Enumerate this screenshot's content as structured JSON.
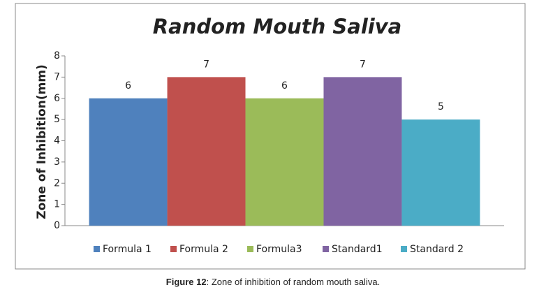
{
  "chart_data": {
    "type": "bar",
    "title": "Random Mouth Saliva",
    "y_label": "Zone of Inhibition(mm)",
    "categories": [
      null
    ],
    "series": [
      {
        "name": "Formula 1",
        "color": "#4f81bd",
        "values": [
          6
        ]
      },
      {
        "name": "Formula 2",
        "color": "#c0504d",
        "values": [
          7
        ]
      },
      {
        "name": "Formula3",
        "color": "#9bbb59",
        "values": [
          6
        ]
      },
      {
        "name": "Standard1",
        "color": "#8064a2",
        "values": [
          7
        ]
      },
      {
        "name": "Standard 2",
        "color": "#4bacc6",
        "values": [
          5
        ]
      }
    ],
    "ylim": [
      0,
      8
    ],
    "yticks": [
      0,
      1,
      2,
      3,
      4,
      5,
      6,
      7,
      8
    ],
    "grid": false,
    "legend": "bottom"
  },
  "caption": {
    "label": "Figure 12",
    "text": ": Zone of inhibition of random mouth saliva."
  }
}
